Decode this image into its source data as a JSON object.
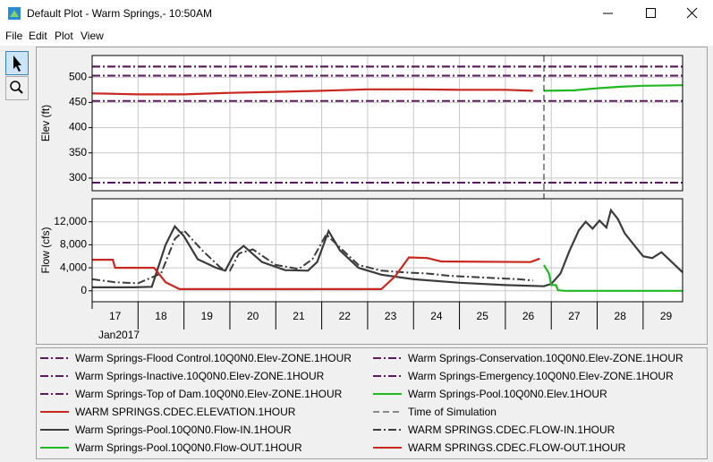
{
  "window": {
    "title": "Default Plot - Warm Springs,- 10:50AM"
  },
  "menu": [
    "File",
    "Edit",
    "Plot",
    "View"
  ],
  "chart_data": [
    {
      "type": "line",
      "y_label": "Elev (ft)",
      "xlim": [
        17,
        29.86
      ],
      "ylim": [
        275,
        543
      ],
      "yticks": [
        300,
        350,
        400,
        450,
        500
      ],
      "grid": true,
      "series": [
        {
          "name": "Warm Springs-Flood Control.10Q0N0.Elev-ZONE.1HOUR",
          "color": "#5a1a5e",
          "style": "dashdot",
          "x": [
            17,
            29.86
          ],
          "values": [
            503,
            503
          ]
        },
        {
          "name": "Warm Springs-Conservation.10Q0N0.Elev-ZONE.1HOUR",
          "color": "#5a1a5e",
          "style": "dashdot",
          "x": [
            17,
            29.86
          ],
          "values": [
            453,
            453
          ]
        },
        {
          "name": "Warm Springs-Inactive.10Q0N0.Elev-ZONE.1HOUR",
          "color": "#5a1a5e",
          "style": "dashdot",
          "x": [
            17,
            29.86
          ],
          "values": [
            291,
            291
          ]
        },
        {
          "name": "Warm Springs-Emergency.10Q0N0.Elev-ZONE.1HOUR",
          "color": "#5a1a5e",
          "style": "dashdot",
          "x": [
            17,
            29.86
          ],
          "values": [
            521,
            521
          ]
        },
        {
          "name": "Warm Springs-Top of Dam.10Q0N0.Elev-ZONE.1HOUR",
          "color": "#5a1a5e",
          "style": "dashdot",
          "x": [
            17,
            29.86
          ],
          "values": [
            521,
            521
          ]
        },
        {
          "name": "Warm Springs-Pool.10Q0N0.Elev.1HOUR",
          "color": "#22b822",
          "style": "solid",
          "x": [
            26.84,
            27.5,
            28,
            28.5,
            29,
            29.86
          ],
          "values": [
            473,
            474,
            478,
            481,
            483,
            484
          ]
        },
        {
          "name": "WARM SPRINGS.CDEC.ELEVATION.1HOUR",
          "color": "#c8281e",
          "style": "solid",
          "x": [
            17,
            17.5,
            18,
            19,
            20,
            21,
            22,
            23,
            24,
            25,
            26,
            26.6
          ],
          "values": [
            468,
            467,
            466,
            466,
            469,
            471,
            473,
            476,
            476,
            475,
            475,
            473
          ]
        },
        {
          "name": "Time of Simulation",
          "type": "vline",
          "color": "#222222",
          "style": "dash",
          "x": 26.84
        }
      ]
    },
    {
      "type": "line",
      "y_label": "Flow (cfs)",
      "x_label": "Jan2017",
      "xlim": [
        17,
        29.86
      ],
      "ylim": [
        -1900,
        16000
      ],
      "xticks": [
        17,
        18,
        19,
        20,
        21,
        22,
        23,
        24,
        25,
        26,
        27,
        28,
        29
      ],
      "yticks": [
        0,
        {
          "value": 4000,
          "label": "4,000"
        },
        {
          "value": 8000,
          "label": "8,000"
        },
        {
          "value": 12000,
          "label": "12,000"
        }
      ],
      "grid": true,
      "series": [
        {
          "name": "Warm Springs-Pool.10Q0N0.Flow-IN.1HOUR",
          "color": "#3c3c3c",
          "style": "solid",
          "x": [
            17,
            17.9,
            18.3,
            18.6,
            18.8,
            19.0,
            19.3,
            19.7,
            19.9,
            20.1,
            20.3,
            20.7,
            21.2,
            21.7,
            21.9,
            22.15,
            22.4,
            22.8,
            23.3,
            24,
            25,
            26,
            26.84,
            27.0,
            27.2,
            27.4,
            27.6,
            27.75,
            27.9,
            28.05,
            28.2,
            28.3,
            28.45,
            28.6,
            28.8,
            29.0,
            29.2,
            29.4,
            29.6,
            29.86
          ],
          "values": [
            600,
            600,
            700,
            8000,
            11200,
            9500,
            5500,
            4000,
            3500,
            6500,
            7800,
            5000,
            3600,
            3500,
            5000,
            10400,
            7000,
            4000,
            2800,
            2000,
            1400,
            1000,
            800,
            1200,
            3000,
            7000,
            10500,
            12000,
            10800,
            12200,
            11000,
            14000,
            12500,
            10000,
            8000,
            6000,
            5700,
            6700,
            5200,
            3200
          ]
        },
        {
          "name": "WARM SPRINGS.CDEC.FLOW-IN.1HOUR",
          "color": "#3c3c3c",
          "style": "dashdot",
          "x": [
            17,
            17.5,
            18,
            18.5,
            18.8,
            19.0,
            19.4,
            19.8,
            20.0,
            20.2,
            20.5,
            21,
            21.5,
            21.8,
            22.1,
            22.4,
            22.8,
            23.3,
            23.8,
            24.3,
            24.8,
            25.3,
            25.8,
            26.3,
            26.6
          ],
          "values": [
            2000,
            1500,
            1300,
            3000,
            9000,
            10500,
            7000,
            4000,
            3500,
            6500,
            7200,
            4500,
            3800,
            5500,
            9800,
            7500,
            4500,
            3500,
            3200,
            3000,
            2600,
            2400,
            2200,
            2000,
            1800
          ]
        },
        {
          "name": "Warm Springs-Pool.10Q0N0.Flow-OUT.1HOUR",
          "color": "#22b822",
          "style": "solid",
          "x": [
            26.84,
            26.95,
            27.0,
            27.1,
            27.15,
            27.3,
            29.86
          ],
          "values": [
            4500,
            3000,
            1000,
            1000,
            100,
            0,
            0
          ]
        },
        {
          "name": "WARM SPRINGS.CDEC.FLOW-OUT.1HOUR",
          "color": "#c8281e",
          "style": "solid",
          "x": [
            17,
            17.45,
            17.5,
            18.35,
            18.6,
            18.9,
            23.3,
            23.6,
            23.9,
            24.3,
            24.6,
            26.55,
            26.75
          ],
          "values": [
            5400,
            5400,
            4000,
            4000,
            1500,
            300,
            300,
            2500,
            5800,
            5700,
            5100,
            5000,
            5600
          ]
        }
      ]
    }
  ]
}
